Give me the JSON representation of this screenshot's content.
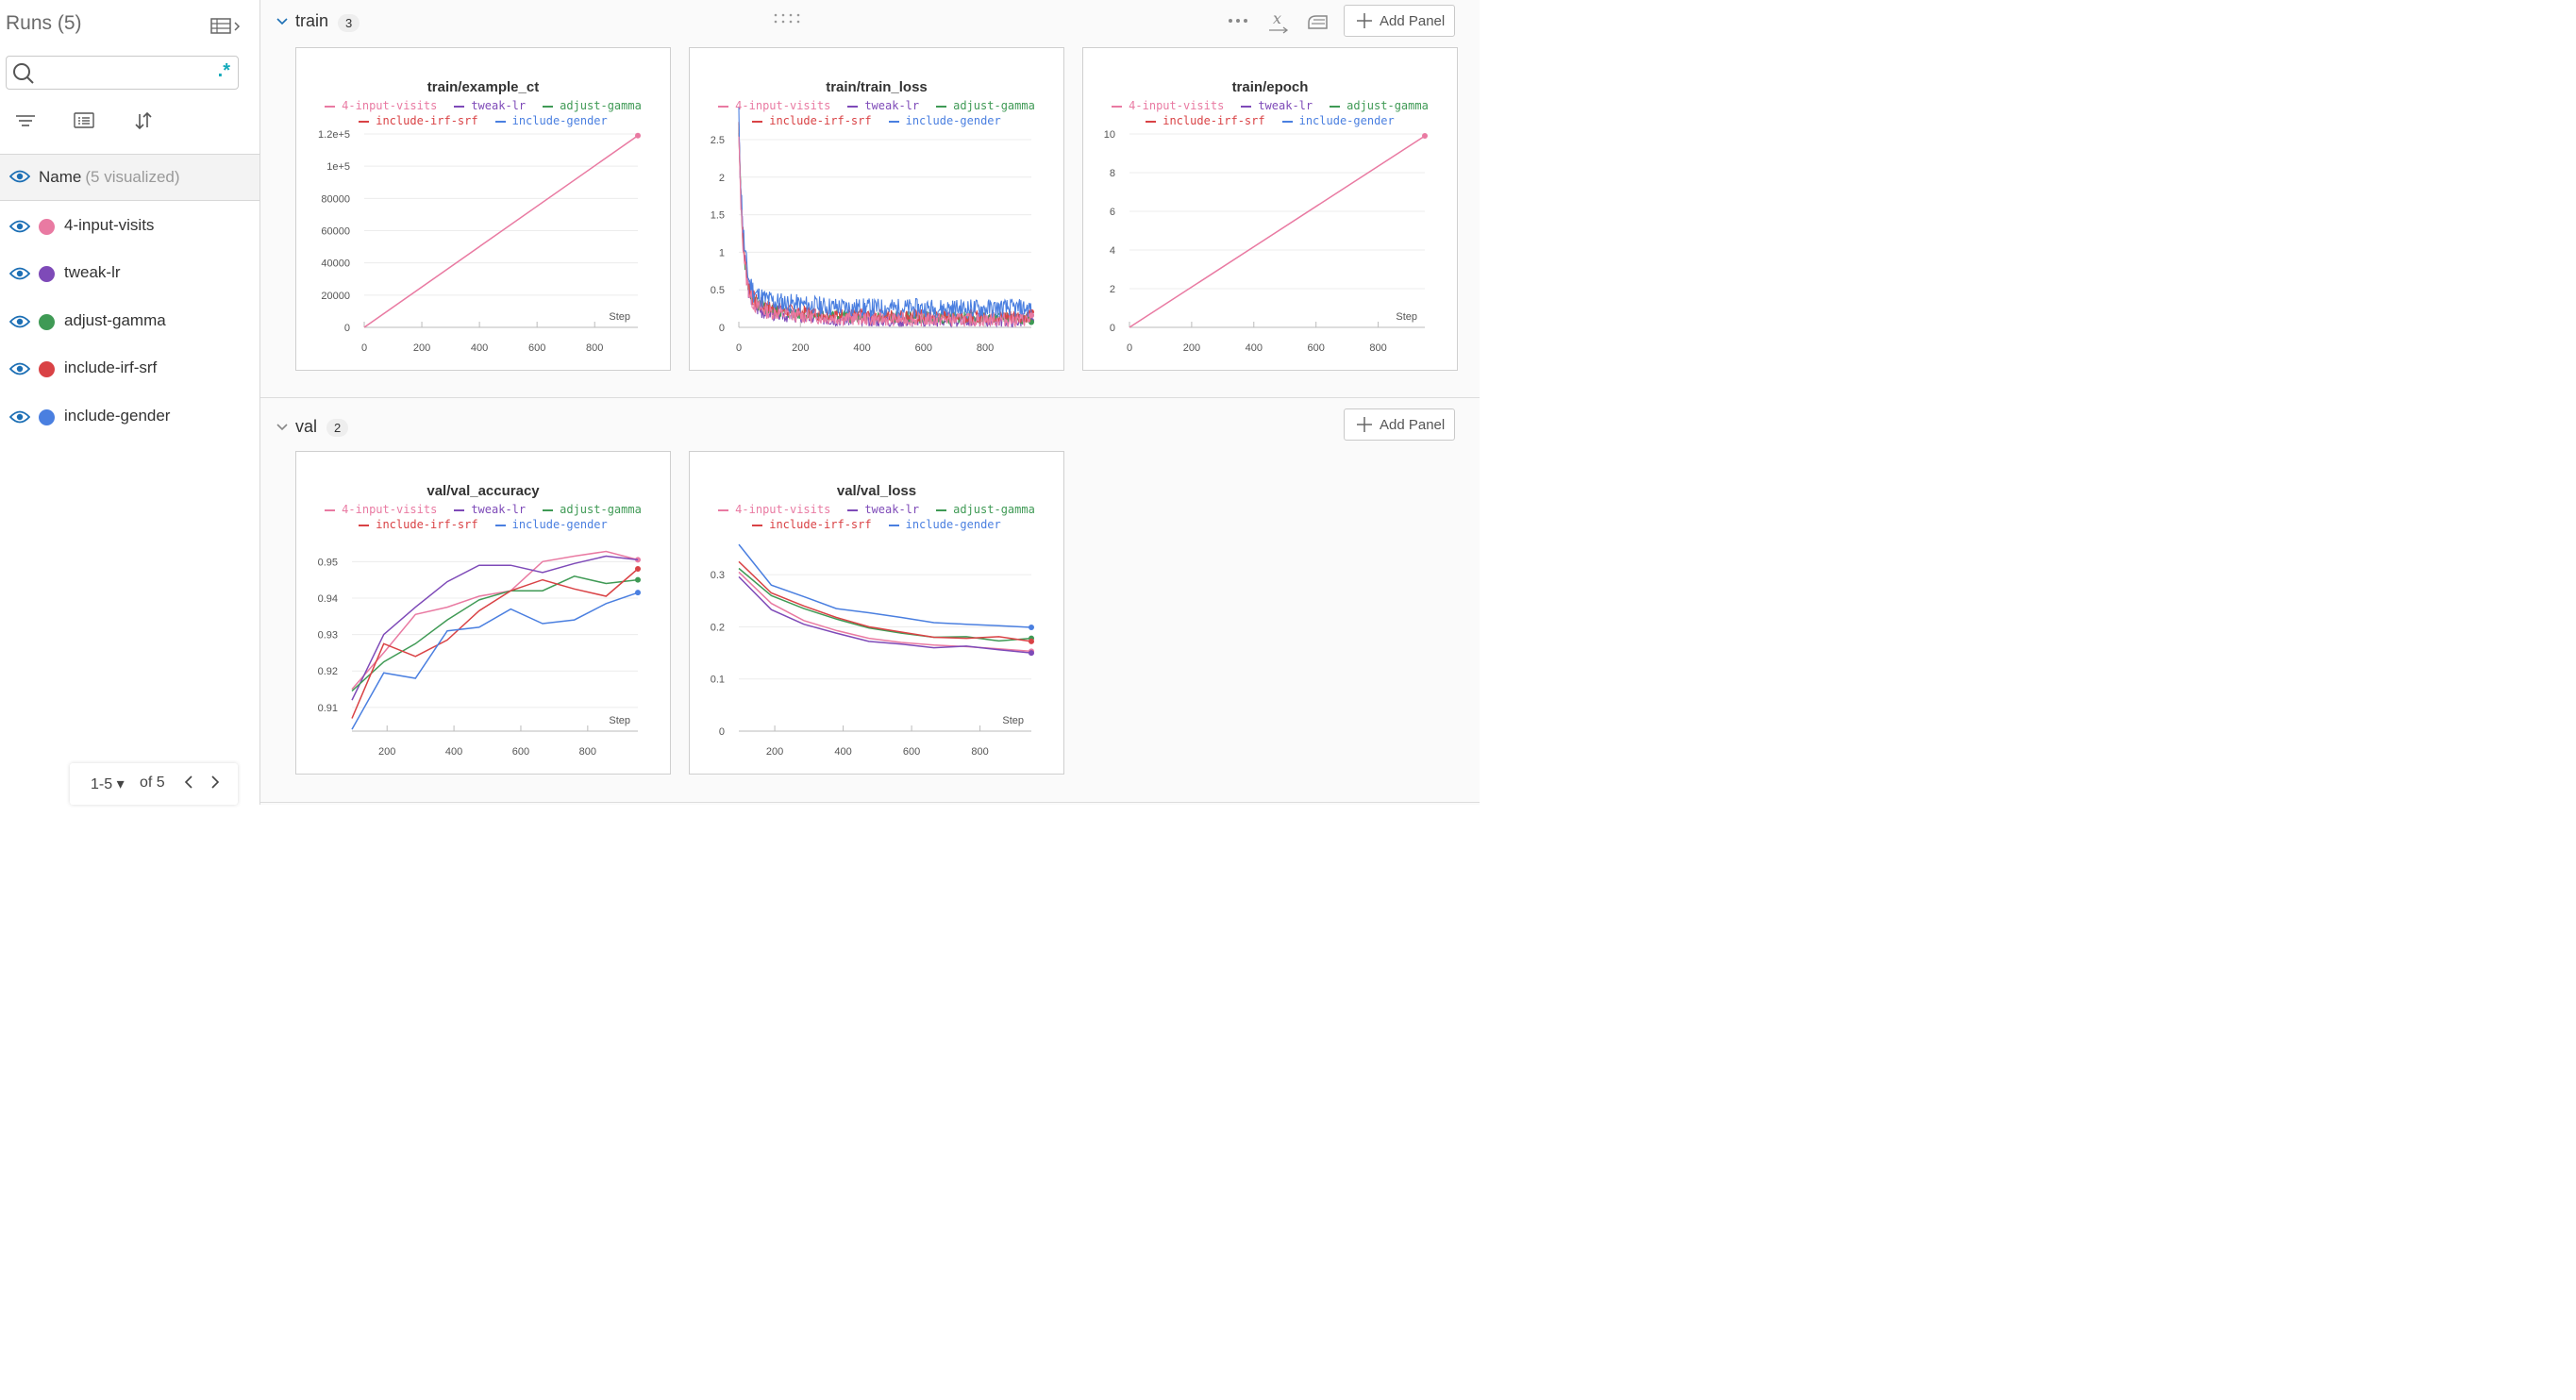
{
  "sidebar": {
    "title": "Runs (5)",
    "search": {
      "value": "",
      "placeholder": ""
    },
    "regex_label": ".*",
    "name_header": {
      "label": "Name",
      "count": "(5 visualized)"
    },
    "runs": [
      {
        "name": "4-input-visits",
        "color": "#e97aa2"
      },
      {
        "name": "tweak-lr",
        "color": "#7e4ab8"
      },
      {
        "name": "adjust-gamma",
        "color": "#3f9a55"
      },
      {
        "name": "include-irf-srf",
        "color": "#d94245"
      },
      {
        "name": "include-gender",
        "color": "#4a7fe0"
      }
    ],
    "pager": {
      "range": "1-5",
      "total": "of 5"
    }
  },
  "sections": [
    {
      "title": "train",
      "count": "3",
      "add_panel": "Add Panel"
    },
    {
      "title": "val",
      "count": "2",
      "add_panel": "Add Panel"
    }
  ],
  "chart_data": [
    {
      "id": "train-example-ct",
      "type": "line",
      "title": "train/example_ct",
      "xlabel": "Step",
      "xlim": [
        0,
        950
      ],
      "ylim": [
        0,
        120000
      ],
      "xticks": [
        0,
        200,
        400,
        600,
        800
      ],
      "yticks": [
        0,
        20000,
        40000,
        60000,
        80000,
        100000,
        120000
      ],
      "ytick_labels": [
        "0",
        "20000",
        "40000",
        "60000",
        "80000",
        "1e+5",
        "1.2e+5"
      ],
      "series": [
        {
          "name": "4-input-visits",
          "color": "#e97aa2",
          "x": [
            0,
            950
          ],
          "y": [
            0,
            119000
          ],
          "marker": true
        }
      ]
    },
    {
      "id": "train-train-loss",
      "type": "line",
      "title": "train/train_loss",
      "xlabel": "Step",
      "xlim": [
        0,
        950
      ],
      "ylim": [
        0,
        2.5
      ],
      "xticks": [
        0,
        200,
        400,
        600,
        800
      ],
      "yticks": [
        0,
        0.5,
        1,
        1.5,
        2,
        2.5
      ],
      "ytick_labels": [
        "0",
        "0.5",
        "1",
        "1.5",
        "2",
        "2.5"
      ],
      "series": [
        {
          "name": "tweak-lr",
          "color": "#7e4ab8",
          "noisy": true,
          "start": 2.45,
          "final": 0.1,
          "amp": 0.1,
          "seed": 3,
          "marker": true
        },
        {
          "name": "adjust-gamma",
          "color": "#3f9a55",
          "noisy": true,
          "start": 2.4,
          "final": 0.13,
          "amp": 0.08,
          "seed": 5,
          "marker": true
        },
        {
          "name": "include-irf-srf",
          "color": "#d94245",
          "noisy": true,
          "start": 2.5,
          "final": 0.15,
          "amp": 0.09,
          "seed": 7,
          "marker": true
        },
        {
          "name": "include-gender",
          "color": "#4a7fe0",
          "noisy": true,
          "start": 2.55,
          "final": 0.25,
          "amp": 0.13,
          "seed": 11,
          "marker": true
        },
        {
          "name": "4-input-visits",
          "color": "#e97aa2",
          "noisy": true,
          "start": 2.3,
          "final": 0.1,
          "amp": 0.09,
          "seed": 13,
          "marker": true
        }
      ]
    },
    {
      "id": "train-epoch",
      "type": "line",
      "title": "train/epoch",
      "xlabel": "Step",
      "xlim": [
        0,
        950
      ],
      "ylim": [
        0,
        10
      ],
      "xticks": [
        0,
        200,
        400,
        600,
        800
      ],
      "yticks": [
        0,
        2,
        4,
        6,
        8,
        10
      ],
      "ytick_labels": [
        "0",
        "2",
        "4",
        "6",
        "8",
        "10"
      ],
      "series": [
        {
          "name": "4-input-visits",
          "color": "#e97aa2",
          "x": [
            0,
            950
          ],
          "y": [
            0,
            9.9
          ],
          "marker": true
        }
      ]
    },
    {
      "id": "val-val-accuracy",
      "type": "line",
      "title": "val/val_accuracy",
      "xlabel": "Step",
      "xlim": [
        95,
        950
      ],
      "ylim": [
        0.9035,
        0.955
      ],
      "xticks": [
        200,
        400,
        600,
        800
      ],
      "yticks": [
        0.91,
        0.92,
        0.93,
        0.94,
        0.95
      ],
      "ytick_labels": [
        "0.91",
        "0.92",
        "0.93",
        "0.94",
        "0.95"
      ],
      "series": [
        {
          "name": "4-input-visits",
          "color": "#e97aa2",
          "x": [
            95,
            190,
            285,
            380,
            475,
            570,
            665,
            760,
            855,
            950
          ],
          "y": [
            0.915,
            0.925,
            0.9355,
            0.9375,
            0.9405,
            0.942,
            0.95,
            0.9515,
            0.9528,
            0.9505
          ],
          "marker": true
        },
        {
          "name": "tweak-lr",
          "color": "#7e4ab8",
          "x": [
            95,
            190,
            285,
            380,
            475,
            570,
            665,
            760,
            855,
            950
          ],
          "y": [
            0.912,
            0.93,
            0.9375,
            0.9445,
            0.949,
            0.949,
            0.947,
            0.9495,
            0.9515,
            0.9505
          ],
          "marker": false
        },
        {
          "name": "adjust-gamma",
          "color": "#3f9a55",
          "x": [
            95,
            190,
            285,
            380,
            475,
            570,
            665,
            760,
            855,
            950
          ],
          "y": [
            0.9145,
            0.9225,
            0.9275,
            0.934,
            0.9395,
            0.942,
            0.942,
            0.946,
            0.944,
            0.945
          ],
          "marker": true
        },
        {
          "name": "include-irf-srf",
          "color": "#d94245",
          "x": [
            95,
            190,
            285,
            380,
            475,
            570,
            665,
            760,
            855,
            950
          ],
          "y": [
            0.907,
            0.9275,
            0.924,
            0.9285,
            0.9365,
            0.942,
            0.945,
            0.9425,
            0.9405,
            0.948
          ],
          "marker": true
        },
        {
          "name": "include-gender",
          "color": "#4a7fe0",
          "x": [
            95,
            190,
            285,
            380,
            475,
            570,
            665,
            760,
            855,
            950
          ],
          "y": [
            0.904,
            0.9195,
            0.918,
            0.931,
            0.932,
            0.937,
            0.933,
            0.934,
            0.9385,
            0.9415
          ],
          "marker": true
        }
      ]
    },
    {
      "id": "val-val-loss",
      "type": "line",
      "title": "val/val_loss",
      "xlabel": "Step",
      "xlim": [
        95,
        950
      ],
      "ylim": [
        0,
        0.36
      ],
      "xticks": [
        200,
        400,
        600,
        800
      ],
      "yticks": [
        0,
        0.1,
        0.2,
        0.3
      ],
      "ytick_labels": [
        "0",
        "0.1",
        "0.2",
        "0.3"
      ],
      "series": [
        {
          "name": "4-input-visits",
          "color": "#e97aa2",
          "x": [
            95,
            190,
            285,
            380,
            475,
            570,
            665,
            760,
            855,
            950
          ],
          "y": [
            0.305,
            0.245,
            0.212,
            0.193,
            0.178,
            0.17,
            0.165,
            0.162,
            0.158,
            0.153
          ],
          "marker": true
        },
        {
          "name": "tweak-lr",
          "color": "#7e4ab8",
          "x": [
            95,
            190,
            285,
            380,
            475,
            570,
            665,
            760,
            855,
            950
          ],
          "y": [
            0.296,
            0.233,
            0.205,
            0.188,
            0.172,
            0.167,
            0.16,
            0.163,
            0.156,
            0.15
          ],
          "marker": true
        },
        {
          "name": "adjust-gamma",
          "color": "#3f9a55",
          "x": [
            95,
            190,
            285,
            380,
            475,
            570,
            665,
            760,
            855,
            950
          ],
          "y": [
            0.312,
            0.26,
            0.235,
            0.215,
            0.198,
            0.188,
            0.18,
            0.181,
            0.173,
            0.178
          ],
          "marker": true
        },
        {
          "name": "include-irf-srf",
          "color": "#d94245",
          "x": [
            95,
            190,
            285,
            380,
            475,
            570,
            665,
            760,
            855,
            950
          ],
          "y": [
            0.325,
            0.265,
            0.24,
            0.218,
            0.2,
            0.19,
            0.18,
            0.178,
            0.181,
            0.172
          ],
          "marker": true
        },
        {
          "name": "include-gender",
          "color": "#4a7fe0",
          "x": [
            95,
            190,
            285,
            380,
            475,
            570,
            665,
            760,
            855,
            950
          ],
          "y": [
            0.358,
            0.28,
            0.258,
            0.235,
            0.227,
            0.218,
            0.208,
            0.205,
            0.202,
            0.199
          ],
          "marker": true
        }
      ]
    }
  ]
}
